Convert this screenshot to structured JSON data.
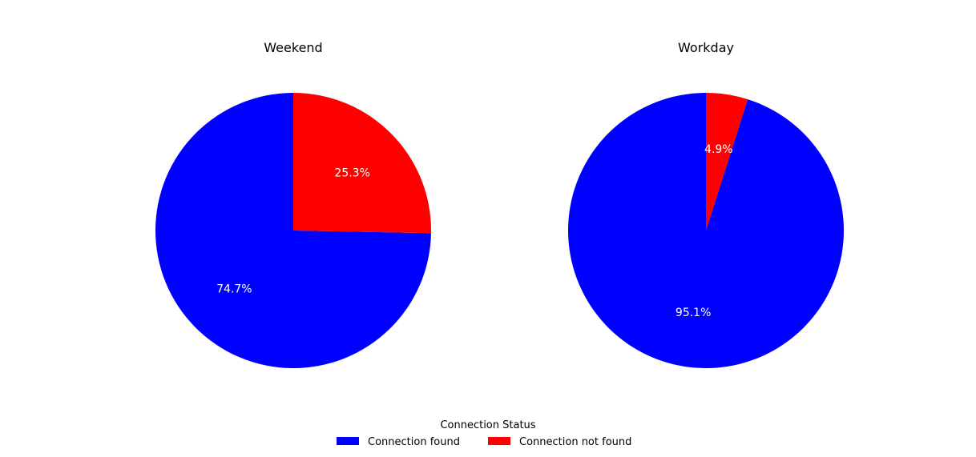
{
  "chart_data": [
    {
      "type": "pie",
      "title": "Weekend",
      "categories": [
        "Connection found",
        "Connection not found"
      ],
      "values": [
        74.7,
        25.3
      ],
      "labels": [
        "74.7%",
        "25.3%"
      ],
      "colors": [
        "#0000ff",
        "#ff0000"
      ],
      "start_angle": "top, counter-clockwise"
    },
    {
      "type": "pie",
      "title": "Workday",
      "categories": [
        "Connection found",
        "Connection not found"
      ],
      "values": [
        95.1,
        4.9
      ],
      "labels": [
        "95.1%",
        "4.9%"
      ],
      "colors": [
        "#0000ff",
        "#ff0000"
      ],
      "start_angle": "top, counter-clockwise"
    }
  ],
  "legend": {
    "title": "Connection Status",
    "placement": "bottom-center",
    "items": [
      {
        "label": "Connection found",
        "color": "#0000ff"
      },
      {
        "label": "Connection not found",
        "color": "#ff0000"
      }
    ]
  }
}
